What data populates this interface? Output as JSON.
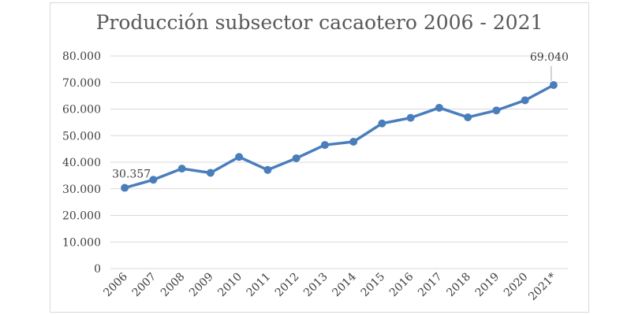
{
  "chart_data": {
    "type": "line",
    "title": "Producción subsector cacaotero 2006 - 2021",
    "xlabel": "",
    "ylabel": "",
    "categories": [
      "2006",
      "2007",
      "2008",
      "2009",
      "2010",
      "2011",
      "2012",
      "2013",
      "2014",
      "2015",
      "2016",
      "2017",
      "2018",
      "2019",
      "2020",
      "2021*"
    ],
    "series": [
      {
        "values": [
          30357,
          33400,
          37600,
          36000,
          42000,
          37100,
          41500,
          46500,
          47700,
          54600,
          56700,
          60500,
          56900,
          59500,
          63300,
          69040
        ]
      }
    ],
    "ylim": [
      0,
      80000
    ],
    "yticks": [
      {
        "value": 0,
        "label": "0"
      },
      {
        "value": 10000,
        "label": "10.000"
      },
      {
        "value": 20000,
        "label": "20.000"
      },
      {
        "value": 30000,
        "label": "30.000"
      },
      {
        "value": 40000,
        "label": "40.000"
      },
      {
        "value": 50000,
        "label": "50.000"
      },
      {
        "value": 60000,
        "label": "60.000"
      },
      {
        "value": 70000,
        "label": "70.000"
      },
      {
        "value": 80000,
        "label": "80.000"
      }
    ],
    "data_labels": [
      {
        "index": 0,
        "label": "30.357"
      },
      {
        "index": 15,
        "label": "69.040"
      }
    ],
    "grid": true,
    "legend": "none",
    "line_color": "#4a7ebb",
    "grid_color": "#d9d9d9"
  }
}
